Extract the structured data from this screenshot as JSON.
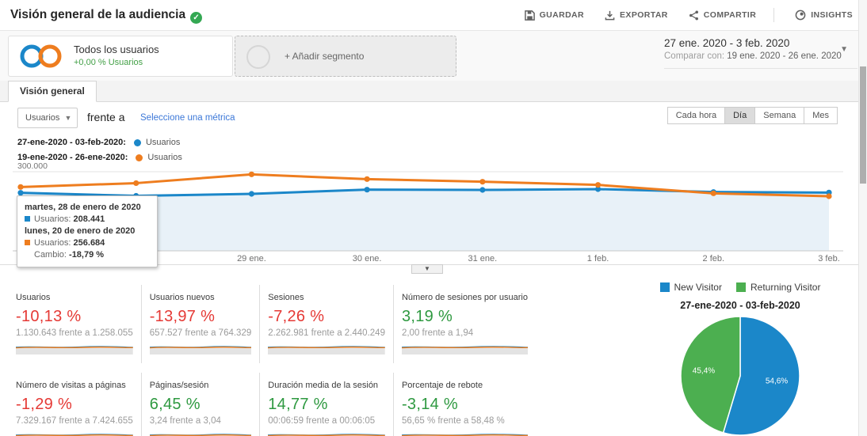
{
  "colors": {
    "series_blue": "#1b87c9",
    "series_orange": "#ee7d1f",
    "area_fill": "#e8f1f8",
    "pie_blue": "#1b87c9",
    "pie_green": "#4caf50",
    "negative_red": "#e53935",
    "positive_green": "#2e9940",
    "link_blue": "#3c78d8",
    "badge_green": "#34a853"
  },
  "header": {
    "title": "Visión general de la audiencia",
    "badge_icon": "verified-check",
    "actions": [
      {
        "label": "GUARDAR",
        "icon": "save-icon"
      },
      {
        "label": "EXPORTAR",
        "icon": "download-icon"
      },
      {
        "label": "COMPARTIR",
        "icon": "share-icon"
      },
      {
        "label": "INSIGHTS",
        "icon": "insights-icon"
      }
    ]
  },
  "segment_bar": {
    "all_users": {
      "title": "Todos los usuarios",
      "subtitle": "+0,00 % Usuarios"
    },
    "add_segment_label": "+ Añadir segmento",
    "date_range": "27 ene. 2020 - 3 feb. 2020",
    "compare_prefix": "Comparar con:",
    "compare_range": "19 ene. 2020 - 26 ene. 2020"
  },
  "tabs": {
    "overview": "Visión general"
  },
  "controls": {
    "metric_selector": "Usuarios",
    "versus_label": "frente a",
    "select_metric_link": "Seleccione una métrica",
    "granularity": [
      "Cada hora",
      "Día",
      "Semana",
      "Mes"
    ],
    "granularity_active": "Día"
  },
  "chart_data": [
    {
      "type": "line",
      "x_axis_labels": [
        "...",
        "28 ene.",
        "29 ene.",
        "30 ene.",
        "31 ene.",
        "1 feb.",
        "2 feb.",
        "3 feb."
      ],
      "gridline_label": "300.000",
      "gridline_value": 300000,
      "ylim": [
        0,
        330000
      ],
      "grid": true,
      "legend_position": "top-left",
      "legend": [
        {
          "date_label": "27-ene-2020 - 03-feb-2020:",
          "series_label": "Usuarios",
          "color": "#1b87c9"
        },
        {
          "date_label": "19-ene-2020 - 26-ene-2020:",
          "series_label": "Usuarios",
          "color": "#ee7d1f"
        }
      ],
      "series": [
        {
          "name": "Usuarios (27-ene-2020 - 03-feb-2020)",
          "color": "#1b87c9",
          "area_fill": "#e8f1f8",
          "values": [
            220000,
            208441,
            216000,
            232000,
            231000,
            234000,
            223000,
            221000
          ]
        },
        {
          "name": "Usuarios (19-ene-2020 - 26-ene-2020)",
          "color": "#ee7d1f",
          "values": [
            242000,
            256684,
            290000,
            272000,
            262000,
            250000,
            218000,
            207000
          ]
        }
      ],
      "tooltip": {
        "row1_date": "martes, 28 de enero de 2020",
        "row1_metric": "Usuarios:",
        "row1_value": "208.441",
        "row2_date": "lunes, 20 de enero de 2020",
        "row2_metric": "Usuarios:",
        "row2_value": "256.684",
        "change_label": "Cambio:",
        "change_value": "-18,79 %"
      }
    },
    {
      "type": "pie",
      "title": "27-ene-2020 - 03-feb-2020",
      "legend": [
        "New Visitor",
        "Returning Visitor"
      ],
      "labels": [
        "New Visitor",
        "Returning Visitor"
      ],
      "values": [
        54.6,
        45.4
      ],
      "display_labels": [
        "54,6%",
        "45,4%"
      ],
      "colors": [
        "#1b87c9",
        "#4caf50"
      ]
    }
  ],
  "metric_cards": [
    {
      "label": "Usuarios",
      "pct": "-10,13 %",
      "tone": "negative",
      "detail": "1.130.643 frente a 1.258.055"
    },
    {
      "label": "Usuarios nuevos",
      "pct": "-13,97 %",
      "tone": "negative",
      "detail": "657.527 frente a 764.329"
    },
    {
      "label": "Sesiones",
      "pct": "-7,26 %",
      "tone": "negative",
      "detail": "2.262.981 frente a 2.440.249"
    },
    {
      "label": "Número de sesiones por usuario",
      "pct": "3,19 %",
      "tone": "positive",
      "detail": "2,00 frente a 1,94"
    },
    {
      "label": "Número de visitas a páginas",
      "pct": "-1,29 %",
      "tone": "negative",
      "detail": "7.329.167 frente a 7.424.655"
    },
    {
      "label": "Páginas/sesión",
      "pct": "6,45 %",
      "tone": "positive",
      "detail": "3,24 frente a 3,04"
    },
    {
      "label": "Duración media de la sesión",
      "pct": "14,77 %",
      "tone": "positive",
      "detail": "00:06:59 frente a 00:06:05"
    },
    {
      "label": "Porcentaje de rebote",
      "pct": "-3,14 %",
      "tone": "positive",
      "detail": "56,65 % frente a 58,48 %"
    }
  ]
}
